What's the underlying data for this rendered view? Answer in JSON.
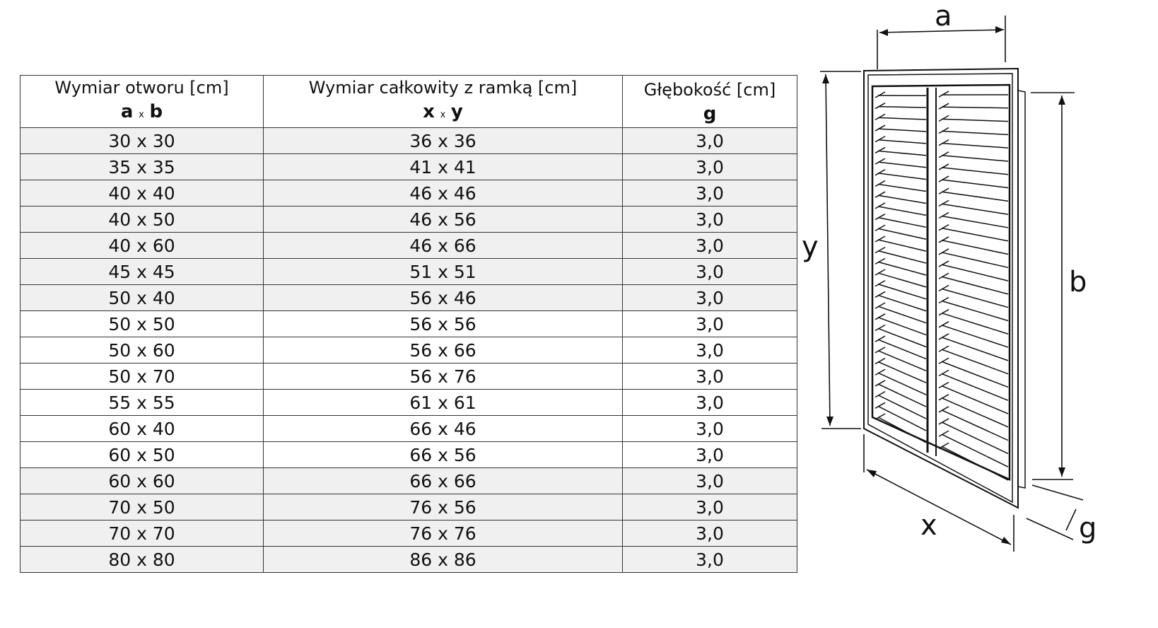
{
  "table": {
    "headers": [
      {
        "title": "Wymiar otworu [cm]",
        "sym1": "a",
        "sep": "x",
        "sym2": "b"
      },
      {
        "title": "Wymiar całkowity z ramką [cm]",
        "sym1": "x",
        "sep": "x",
        "sym2": "y"
      },
      {
        "title": "Głębokość [cm]",
        "sym1": "g",
        "sep": "",
        "sym2": ""
      }
    ],
    "rows": [
      {
        "opening": "30 x 30",
        "total": "36 x 36",
        "depth": "3,0",
        "shaded": true
      },
      {
        "opening": "35 x 35",
        "total": "41 x 41",
        "depth": "3,0",
        "shaded": true
      },
      {
        "opening": "40 x 40",
        "total": "46 x 46",
        "depth": "3,0",
        "shaded": true
      },
      {
        "opening": "40 x 50",
        "total": "46 x 56",
        "depth": "3,0",
        "shaded": true
      },
      {
        "opening": "40 x 60",
        "total": "46 x 66",
        "depth": "3,0",
        "shaded": true
      },
      {
        "opening": "45 x 45",
        "total": "51 x 51",
        "depth": "3,0",
        "shaded": true
      },
      {
        "opening": "50 x 40",
        "total": "56 x 46",
        "depth": "3,0",
        "shaded": true
      },
      {
        "opening": "50 x 50",
        "total": "56 x 56",
        "depth": "3,0",
        "shaded": false
      },
      {
        "opening": "50 x 60",
        "total": "56 x 66",
        "depth": "3,0",
        "shaded": false
      },
      {
        "opening": "50 x 70",
        "total": "56 x 76",
        "depth": "3,0",
        "shaded": false
      },
      {
        "opening": "55 x 55",
        "total": "61 x 61",
        "depth": "3,0",
        "shaded": false
      },
      {
        "opening": "60 x 40",
        "total": "66 x 46",
        "depth": "3,0",
        "shaded": false
      },
      {
        "opening": "60 x 50",
        "total": "66 x 56",
        "depth": "3,0",
        "shaded": false
      },
      {
        "opening": "60 x 60",
        "total": "66 x 66",
        "depth": "3,0",
        "shaded": true
      },
      {
        "opening": "70 x 50",
        "total": "76 x 56",
        "depth": "3,0",
        "shaded": true
      },
      {
        "opening": "70 x 70",
        "total": "76 x 76",
        "depth": "3,0",
        "shaded": true
      },
      {
        "opening": "80 x 80",
        "total": "86 x 86",
        "depth": "3,0",
        "shaded": true
      }
    ]
  },
  "diagram": {
    "labels": {
      "a": "a",
      "b": "b",
      "x": "x",
      "y": "y",
      "g": "g"
    }
  },
  "colors": {
    "row_shade": "#f0f0f0",
    "border": "#333333"
  }
}
